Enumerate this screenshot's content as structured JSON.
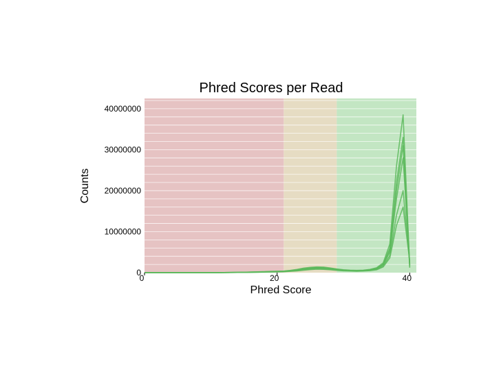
{
  "chart_data": {
    "type": "line",
    "title": "Phred Scores per Read",
    "xlabel": "Phred Score",
    "ylabel": "Counts",
    "xlim": [
      0,
      41
    ],
    "ylim": [
      0,
      42500000
    ],
    "x_ticks": [
      {
        "value": 0,
        "label": "0"
      },
      {
        "value": 20,
        "label": "20"
      },
      {
        "value": 40,
        "label": "40"
      }
    ],
    "y_ticks": [
      {
        "value": 0,
        "label": "0"
      },
      {
        "value": 10000000,
        "label": "10000000"
      },
      {
        "value": 20000000,
        "label": "20000000"
      },
      {
        "value": 30000000,
        "label": "30000000"
      },
      {
        "value": 40000000,
        "label": "40000000"
      }
    ],
    "grid": true,
    "background_bands": [
      {
        "range": [
          0,
          21
        ],
        "color": "#e6c3c3"
      },
      {
        "range": [
          21,
          29
        ],
        "color": "#e6dcc3"
      },
      {
        "range": [
          29,
          41
        ],
        "color": "#c3e6c3"
      }
    ],
    "line_color": "#5cb85c",
    "x": [
      0,
      1,
      2,
      3,
      4,
      5,
      6,
      7,
      8,
      9,
      10,
      11,
      12,
      13,
      14,
      15,
      16,
      17,
      18,
      19,
      20,
      21,
      22,
      23,
      24,
      25,
      26,
      27,
      28,
      29,
      30,
      31,
      32,
      33,
      34,
      35,
      36,
      37,
      38,
      39,
      40
    ],
    "series": [
      {
        "values": [
          0,
          0,
          0,
          0,
          0,
          0,
          0,
          0,
          0,
          0,
          0,
          20000,
          40000,
          60000,
          80000,
          100000,
          150000,
          200000,
          250000,
          300000,
          350000,
          400000,
          550000,
          800000,
          1100000,
          1300000,
          1400000,
          1350000,
          1150000,
          900000,
          700000,
          600000,
          550000,
          600000,
          800000,
          1200000,
          2400000,
          7000000,
          26000000,
          38500000,
          1500000
        ]
      },
      {
        "values": [
          0,
          0,
          0,
          0,
          0,
          0,
          0,
          0,
          0,
          0,
          0,
          15000,
          30000,
          50000,
          70000,
          90000,
          130000,
          170000,
          210000,
          250000,
          300000,
          350000,
          500000,
          700000,
          950000,
          1150000,
          1250000,
          1200000,
          1050000,
          850000,
          650000,
          550000,
          500000,
          550000,
          700000,
          1050000,
          2100000,
          6000000,
          22000000,
          33000000,
          1800000
        ]
      },
      {
        "values": [
          0,
          0,
          0,
          0,
          0,
          0,
          0,
          0,
          0,
          0,
          0,
          10000,
          25000,
          40000,
          60000,
          80000,
          110000,
          140000,
          180000,
          220000,
          260000,
          300000,
          450000,
          600000,
          850000,
          1000000,
          1100000,
          1050000,
          950000,
          750000,
          600000,
          500000,
          450000,
          500000,
          650000,
          950000,
          1900000,
          5000000,
          18000000,
          28000000,
          2000000
        ]
      },
      {
        "values": [
          0,
          0,
          0,
          0,
          0,
          0,
          0,
          0,
          0,
          0,
          0,
          8000,
          20000,
          30000,
          50000,
          70000,
          90000,
          120000,
          150000,
          180000,
          220000,
          250000,
          380000,
          500000,
          700000,
          850000,
          950000,
          900000,
          800000,
          650000,
          500000,
          450000,
          400000,
          450000,
          550000,
          800000,
          1600000,
          4200000,
          14000000,
          20000000,
          2400000
        ]
      },
      {
        "values": [
          0,
          0,
          0,
          0,
          0,
          0,
          0,
          0,
          0,
          0,
          0,
          6000,
          15000,
          25000,
          40000,
          55000,
          75000,
          100000,
          120000,
          150000,
          180000,
          210000,
          320000,
          430000,
          600000,
          750000,
          850000,
          800000,
          700000,
          550000,
          450000,
          400000,
          350000,
          400000,
          500000,
          700000,
          1400000,
          3600000,
          11500000,
          16000000,
          2800000
        ]
      },
      {
        "values": [
          0,
          0,
          0,
          0,
          0,
          0,
          0,
          0,
          0,
          0,
          0,
          12000,
          28000,
          45000,
          65000,
          85000,
          120000,
          160000,
          200000,
          240000,
          280000,
          330000,
          480000,
          650000,
          900000,
          1100000,
          1200000,
          1150000,
          1000000,
          800000,
          620000,
          520000,
          480000,
          520000,
          680000,
          1000000,
          2000000,
          5500000,
          20000000,
          31000000,
          1200000
        ]
      }
    ]
  }
}
